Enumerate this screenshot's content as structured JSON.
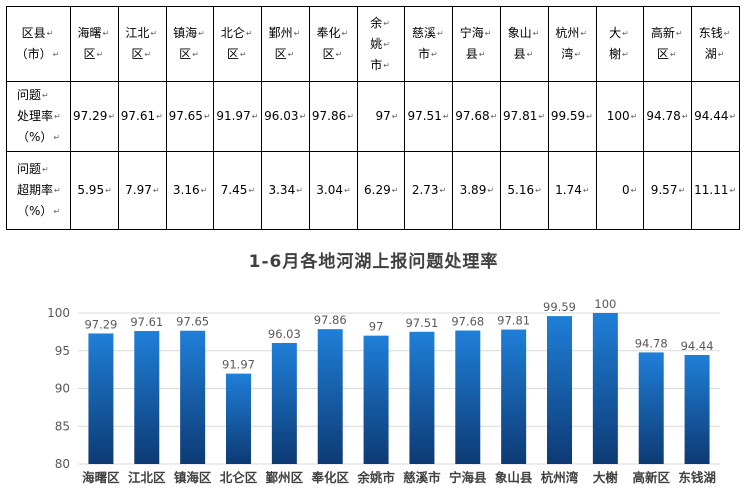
{
  "table": {
    "header_label": [
      "区县",
      "（市）"
    ],
    "columns": [
      [
        "海曙",
        "区"
      ],
      [
        "江北",
        "区"
      ],
      [
        "镇海",
        "区"
      ],
      [
        "北仑",
        "区"
      ],
      [
        "鄞州",
        "区"
      ],
      [
        "奉化",
        "区"
      ],
      [
        "余",
        "姚",
        "市"
      ],
      [
        "慈溪",
        "市"
      ],
      [
        "宁海",
        "县"
      ],
      [
        "象山",
        "县"
      ],
      [
        "杭州",
        "湾"
      ],
      [
        "大",
        "榭"
      ],
      [
        "高新",
        "区"
      ],
      [
        "东钱",
        "湖"
      ]
    ],
    "rows": [
      {
        "label": [
          "问题",
          "处理率",
          "（%）"
        ],
        "values": [
          "97.29",
          "97.61",
          "97.65",
          "91.97",
          "96.03",
          "97.86",
          "97",
          "97.51",
          "97.68",
          "97.81",
          "99.59",
          "100",
          "94.78",
          "94.44"
        ]
      },
      {
        "label": [
          "问题",
          "超期率",
          "（%）"
        ],
        "values": [
          "5.95",
          "7.97",
          "3.16",
          "7.45",
          "3.34",
          "3.04",
          "6.29",
          "2.73",
          "3.89",
          "5.16",
          "1.74",
          "0",
          "9.57",
          "11.11"
        ]
      }
    ],
    "paragraph_mark": "↵"
  },
  "chart_data": {
    "type": "bar",
    "title": "1-6月各地河湖上报问题处理率",
    "categories": [
      "海曙区",
      "江北区",
      "镇海区",
      "北仑区",
      "鄞州区",
      "奉化区",
      "余姚市",
      "慈溪市",
      "宁海县",
      "象山县",
      "杭州湾",
      "大榭",
      "高新区",
      "东钱湖"
    ],
    "values": [
      97.29,
      97.61,
      97.65,
      91.97,
      96.03,
      97.86,
      97,
      97.51,
      97.68,
      97.81,
      99.59,
      100,
      94.78,
      94.44
    ],
    "data_labels": [
      "97.29",
      "97.61",
      "97.65",
      "91.97",
      "96.03",
      "97.86",
      "97",
      "97.51",
      "97.68",
      "97.81",
      "99.59",
      "100",
      "94.78",
      "94.44"
    ],
    "ylim": [
      80,
      100
    ],
    "yticks": [
      80,
      85,
      90,
      95,
      100
    ],
    "grid": true,
    "legend": "none",
    "bar_color_top": "#1f7fd8",
    "bar_color_bottom": "#0d3a74"
  }
}
